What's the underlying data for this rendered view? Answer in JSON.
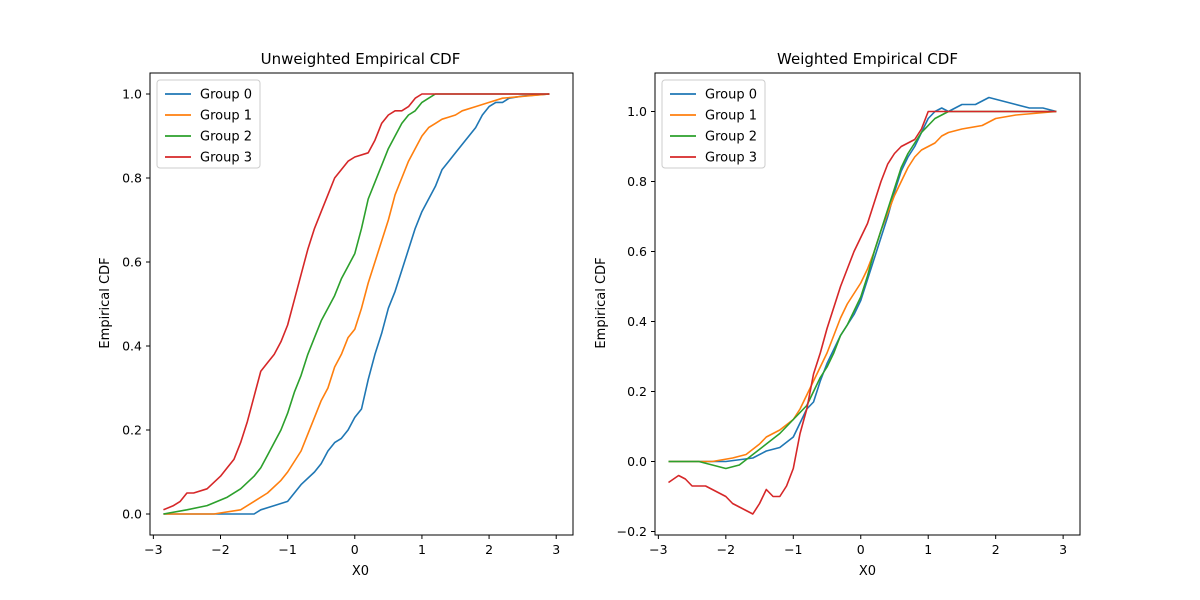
{
  "figure": {
    "panels": [
      {
        "title": "Unweighted Empirical CDF",
        "xlabel": "X0",
        "ylabel": "Empirical CDF"
      },
      {
        "title": "Weighted Empirical CDF",
        "xlabel": "X0",
        "ylabel": "Empirical CDF"
      }
    ]
  },
  "chart_data": [
    {
      "type": "line",
      "title": "Unweighted Empirical CDF",
      "xlabel": "X0",
      "ylabel": "Empirical CDF",
      "xlim": [
        -3.05,
        3.25
      ],
      "ylim": [
        -0.05,
        1.05
      ],
      "xticks": [
        -3,
        -2,
        -1,
        0,
        1,
        2,
        3
      ],
      "xtick_labels": [
        "−3",
        "−2",
        "−1",
        "0",
        "1",
        "2",
        "3"
      ],
      "yticks": [
        0.0,
        0.2,
        0.4,
        0.6,
        0.8,
        1.0
      ],
      "ytick_labels": [
        "0.0",
        "0.2",
        "0.4",
        "0.6",
        "0.8",
        "1.0"
      ],
      "grid": false,
      "legend": "top-left",
      "series": [
        {
          "name": "Group 0",
          "color": "#1f77b4",
          "x": [
            -2.85,
            -1.5,
            -1.4,
            -1.2,
            -1.0,
            -0.9,
            -0.8,
            -0.6,
            -0.5,
            -0.4,
            -0.3,
            -0.2,
            -0.1,
            0.0,
            0.1,
            0.2,
            0.3,
            0.4,
            0.5,
            0.6,
            0.7,
            0.8,
            0.9,
            1.0,
            1.1,
            1.2,
            1.3,
            1.4,
            1.5,
            1.6,
            1.7,
            1.8,
            1.9,
            2.0,
            2.1,
            2.2,
            2.3,
            2.5,
            2.9
          ],
          "y": [
            0.0,
            0.0,
            0.01,
            0.02,
            0.03,
            0.05,
            0.07,
            0.1,
            0.12,
            0.15,
            0.17,
            0.18,
            0.2,
            0.23,
            0.25,
            0.32,
            0.38,
            0.43,
            0.49,
            0.53,
            0.58,
            0.63,
            0.68,
            0.72,
            0.75,
            0.78,
            0.82,
            0.84,
            0.86,
            0.88,
            0.9,
            0.92,
            0.95,
            0.97,
            0.98,
            0.98,
            0.99,
            0.995,
            1.0
          ]
        },
        {
          "name": "Group 1",
          "color": "#ff7f0e",
          "x": [
            -2.85,
            -2.1,
            -1.7,
            -1.5,
            -1.3,
            -1.1,
            -1.0,
            -0.8,
            -0.7,
            -0.6,
            -0.5,
            -0.4,
            -0.3,
            -0.2,
            -0.1,
            0.0,
            0.1,
            0.2,
            0.3,
            0.4,
            0.5,
            0.6,
            0.7,
            0.8,
            0.9,
            1.0,
            1.1,
            1.2,
            1.3,
            1.4,
            1.5,
            1.6,
            1.8,
            2.0,
            2.2,
            2.9
          ],
          "y": [
            0.0,
            0.0,
            0.01,
            0.03,
            0.05,
            0.08,
            0.1,
            0.15,
            0.19,
            0.23,
            0.27,
            0.3,
            0.35,
            0.38,
            0.42,
            0.44,
            0.49,
            0.55,
            0.6,
            0.65,
            0.7,
            0.76,
            0.8,
            0.84,
            0.87,
            0.9,
            0.92,
            0.93,
            0.94,
            0.945,
            0.95,
            0.96,
            0.97,
            0.98,
            0.99,
            1.0
          ]
        },
        {
          "name": "Group 2",
          "color": "#2ca02c",
          "x": [
            -2.85,
            -2.5,
            -2.2,
            -1.9,
            -1.7,
            -1.5,
            -1.4,
            -1.3,
            -1.2,
            -1.1,
            -1.0,
            -0.9,
            -0.8,
            -0.7,
            -0.6,
            -0.5,
            -0.4,
            -0.3,
            -0.2,
            -0.1,
            0.0,
            0.1,
            0.2,
            0.3,
            0.4,
            0.5,
            0.6,
            0.7,
            0.8,
            0.9,
            1.0,
            1.1,
            1.2,
            2.9
          ],
          "y": [
            0.0,
            0.01,
            0.02,
            0.04,
            0.06,
            0.09,
            0.11,
            0.14,
            0.17,
            0.2,
            0.24,
            0.29,
            0.33,
            0.38,
            0.42,
            0.46,
            0.49,
            0.52,
            0.56,
            0.59,
            0.62,
            0.68,
            0.75,
            0.79,
            0.83,
            0.87,
            0.9,
            0.93,
            0.95,
            0.96,
            0.98,
            0.99,
            1.0,
            1.0
          ]
        },
        {
          "name": "Group 3",
          "color": "#d62728",
          "x": [
            -2.85,
            -2.7,
            -2.6,
            -2.5,
            -2.4,
            -2.2,
            -2.0,
            -1.9,
            -1.8,
            -1.7,
            -1.6,
            -1.5,
            -1.4,
            -1.3,
            -1.2,
            -1.1,
            -1.0,
            -0.9,
            -0.8,
            -0.7,
            -0.6,
            -0.5,
            -0.4,
            -0.3,
            -0.2,
            -0.1,
            0.0,
            0.2,
            0.3,
            0.4,
            0.5,
            0.6,
            0.7,
            0.8,
            0.9,
            1.0,
            2.9
          ],
          "y": [
            0.01,
            0.02,
            0.03,
            0.05,
            0.05,
            0.06,
            0.09,
            0.11,
            0.13,
            0.17,
            0.22,
            0.28,
            0.34,
            0.36,
            0.38,
            0.41,
            0.45,
            0.51,
            0.57,
            0.63,
            0.68,
            0.72,
            0.76,
            0.8,
            0.82,
            0.84,
            0.85,
            0.86,
            0.89,
            0.93,
            0.95,
            0.96,
            0.96,
            0.97,
            0.99,
            1.0,
            1.0
          ]
        }
      ]
    },
    {
      "type": "line",
      "title": "Weighted Empirical CDF",
      "xlabel": "X0",
      "ylabel": "Empirical CDF",
      "xlim": [
        -3.05,
        3.25
      ],
      "ylim": [
        -0.21,
        1.11
      ],
      "xticks": [
        -3,
        -2,
        -1,
        0,
        1,
        2,
        3
      ],
      "xtick_labels": [
        "−3",
        "−2",
        "−1",
        "0",
        "1",
        "2",
        "3"
      ],
      "yticks": [
        -0.2,
        0.0,
        0.2,
        0.4,
        0.6,
        0.8,
        1.0
      ],
      "ytick_labels": [
        "−0.2",
        "0.0",
        "0.2",
        "0.4",
        "0.6",
        "0.8",
        "1.0"
      ],
      "grid": false,
      "legend": "top-left",
      "series": [
        {
          "name": "Group 0",
          "color": "#1f77b4",
          "x": [
            -2.85,
            -2.0,
            -1.6,
            -1.4,
            -1.2,
            -1.0,
            -0.9,
            -0.8,
            -0.7,
            -0.6,
            -0.5,
            -0.4,
            -0.3,
            -0.2,
            -0.1,
            0.0,
            0.1,
            0.2,
            0.3,
            0.4,
            0.5,
            0.6,
            0.7,
            0.8,
            0.9,
            1.0,
            1.1,
            1.2,
            1.3,
            1.5,
            1.7,
            1.9,
            2.1,
            2.3,
            2.5,
            2.7,
            2.9
          ],
          "y": [
            0.0,
            0.0,
            0.01,
            0.03,
            0.04,
            0.07,
            0.11,
            0.15,
            0.17,
            0.23,
            0.28,
            0.32,
            0.36,
            0.39,
            0.42,
            0.46,
            0.52,
            0.58,
            0.64,
            0.7,
            0.77,
            0.83,
            0.87,
            0.9,
            0.94,
            0.98,
            1.0,
            1.01,
            1.0,
            1.02,
            1.02,
            1.04,
            1.03,
            1.02,
            1.01,
            1.01,
            1.0
          ]
        },
        {
          "name": "Group 1",
          "color": "#ff7f0e",
          "x": [
            -2.85,
            -2.2,
            -1.9,
            -1.7,
            -1.5,
            -1.4,
            -1.2,
            -1.0,
            -0.9,
            -0.8,
            -0.7,
            -0.6,
            -0.5,
            -0.4,
            -0.3,
            -0.2,
            -0.1,
            0.0,
            0.1,
            0.2,
            0.3,
            0.4,
            0.5,
            0.6,
            0.7,
            0.8,
            0.9,
            1.0,
            1.1,
            1.2,
            1.3,
            1.5,
            1.8,
            2.0,
            2.3,
            2.9
          ],
          "y": [
            0.0,
            0.0,
            0.01,
            0.02,
            0.05,
            0.07,
            0.09,
            0.12,
            0.15,
            0.19,
            0.23,
            0.27,
            0.31,
            0.36,
            0.41,
            0.45,
            0.48,
            0.51,
            0.55,
            0.6,
            0.66,
            0.71,
            0.76,
            0.8,
            0.84,
            0.87,
            0.89,
            0.9,
            0.91,
            0.93,
            0.94,
            0.95,
            0.96,
            0.98,
            0.99,
            1.0
          ]
        },
        {
          "name": "Group 2",
          "color": "#2ca02c",
          "x": [
            -2.85,
            -2.4,
            -2.2,
            -2.0,
            -1.8,
            -1.6,
            -1.4,
            -1.2,
            -1.0,
            -0.9,
            -0.8,
            -0.7,
            -0.6,
            -0.5,
            -0.4,
            -0.3,
            -0.2,
            -0.1,
            0.0,
            0.1,
            0.2,
            0.3,
            0.4,
            0.5,
            0.6,
            0.7,
            0.8,
            0.9,
            1.0,
            1.1,
            1.2,
            1.3,
            2.9
          ],
          "y": [
            0.0,
            0.0,
            -0.01,
            -0.02,
            -0.01,
            0.02,
            0.05,
            0.08,
            0.12,
            0.14,
            0.16,
            0.2,
            0.24,
            0.27,
            0.31,
            0.36,
            0.39,
            0.43,
            0.47,
            0.53,
            0.6,
            0.66,
            0.72,
            0.78,
            0.84,
            0.88,
            0.91,
            0.94,
            0.96,
            0.98,
            0.99,
            1.0,
            1.0
          ]
        },
        {
          "name": "Group 3",
          "color": "#d62728",
          "x": [
            -2.85,
            -2.7,
            -2.6,
            -2.5,
            -2.3,
            -2.1,
            -2.0,
            -1.9,
            -1.8,
            -1.7,
            -1.6,
            -1.5,
            -1.4,
            -1.3,
            -1.2,
            -1.1,
            -1.0,
            -0.9,
            -0.8,
            -0.7,
            -0.6,
            -0.5,
            -0.4,
            -0.3,
            -0.2,
            -0.1,
            0.0,
            0.1,
            0.2,
            0.3,
            0.4,
            0.5,
            0.6,
            0.7,
            0.8,
            0.9,
            1.0,
            1.1,
            2.9
          ],
          "y": [
            -0.06,
            -0.04,
            -0.05,
            -0.07,
            -0.07,
            -0.09,
            -0.1,
            -0.12,
            -0.13,
            -0.14,
            -0.15,
            -0.12,
            -0.08,
            -0.1,
            -0.1,
            -0.07,
            -0.02,
            0.08,
            0.15,
            0.25,
            0.31,
            0.38,
            0.44,
            0.5,
            0.55,
            0.6,
            0.64,
            0.68,
            0.74,
            0.8,
            0.85,
            0.88,
            0.9,
            0.91,
            0.92,
            0.95,
            1.0,
            1.0,
            1.0
          ]
        }
      ]
    }
  ]
}
